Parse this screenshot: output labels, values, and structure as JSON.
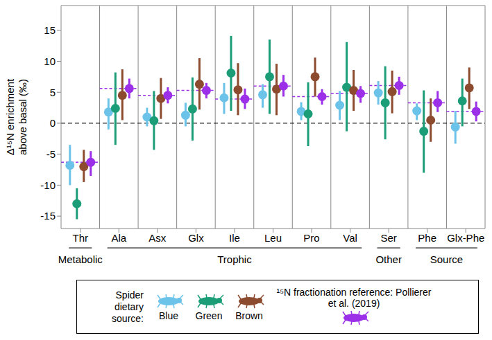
{
  "chart_data": {
    "type": "scatter",
    "y_label": "Δ¹⁵N enrichment above basal (‰)",
    "categories": [
      "Thr",
      "Ala",
      "Asx",
      "Glx",
      "Ile",
      "Leu",
      "Pro",
      "Val",
      "Ser",
      "Phe",
      "Glx-Phe"
    ],
    "groups": [
      {
        "label": "Metabolic",
        "categories": [
          "Thr"
        ]
      },
      {
        "label": "Trophic",
        "categories": [
          "Ala",
          "Asx",
          "Glx",
          "Ile",
          "Leu",
          "Pro",
          "Val"
        ]
      },
      {
        "label": "Other",
        "categories": [
          "Ser"
        ]
      },
      {
        "label": "Source",
        "categories": [
          "Phe",
          "Glx-Phe"
        ]
      }
    ],
    "ylim": [
      -17,
      19
    ],
    "yticks": [
      -15,
      -10,
      -5,
      0,
      5,
      10,
      15
    ],
    "legend": "bottom",
    "legend_title": "Spider dietary source:",
    "series": [
      {
        "name": "Blue",
        "color": "#6cc3ea",
        "values": [
          -6.8,
          1.8,
          1.0,
          1.3,
          4.1,
          4.6,
          1.9,
          2.9,
          4.9,
          2.0,
          -0.6
        ],
        "lower": [
          -10,
          -1,
          -0.5,
          -0.5,
          1.5,
          2.5,
          0.5,
          0.5,
          3,
          0.5,
          -3.3
        ],
        "upper": [
          -3.5,
          4,
          2.5,
          3.3,
          6.5,
          6.3,
          3.4,
          5.2,
          6.8,
          3.2,
          2
        ]
      },
      {
        "name": "Green",
        "color": "#1b9e77",
        "values": [
          -13,
          2.4,
          0.4,
          2.3,
          8.1,
          7.5,
          1.5,
          5.8,
          3.3,
          -1.3,
          3.6
        ],
        "lower": [
          -15.5,
          -3.5,
          -4.3,
          -2.8,
          2,
          1.5,
          -3.7,
          -1.3,
          -2.6,
          -8,
          -0.5
        ],
        "upper": [
          -10.5,
          8.2,
          5.2,
          7.4,
          14.1,
          13.5,
          6.6,
          13.1,
          9.2,
          5.3,
          7.2
        ]
      },
      {
        "name": "Brown",
        "color": "#8c4a2f",
        "values": [
          -7,
          4.5,
          4.0,
          6.3,
          5.4,
          5.5,
          7.5,
          5.3,
          5.1,
          0.5,
          5.7
        ],
        "lower": [
          -9.5,
          0.5,
          0.7,
          2.2,
          1.3,
          1.3,
          4.3,
          2,
          1.6,
          -3,
          2.3
        ],
        "upper": [
          -4.3,
          8.7,
          7.3,
          10.5,
          9.7,
          9.6,
          10.6,
          8.6,
          8.5,
          4,
          9
        ]
      },
      {
        "name": "¹⁵N fractionation reference: Pollierer et al. (2019)",
        "color": "#9b30e8",
        "line_style": "dashed",
        "values": [
          -6.3,
          5.6,
          4.5,
          5.3,
          3.9,
          6.0,
          4.3,
          4.8,
          6.1,
          3.3,
          1.9
        ],
        "lower": [
          -8.5,
          4,
          3.2,
          4,
          2.3,
          4.3,
          3,
          3.3,
          4.6,
          1.8,
          0.3
        ],
        "upper": [
          -4.5,
          7.2,
          5.8,
          6.5,
          5.6,
          7.8,
          5.5,
          6,
          7.5,
          5.2,
          3.5
        ]
      }
    ]
  }
}
